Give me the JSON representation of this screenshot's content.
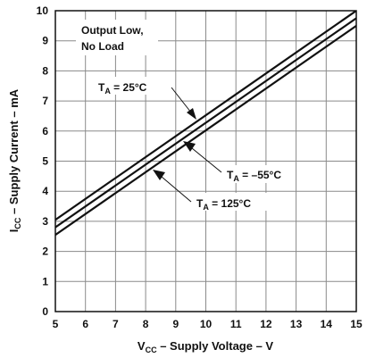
{
  "chart_data": {
    "type": "line",
    "xlabel_main": "V",
    "xlabel_sub": "CC",
    "xlabel_rest": " – Supply Voltage – V",
    "ylabel_main": "I",
    "ylabel_sub": "CC",
    "ylabel_rest": " – Supply Current – mA",
    "xlim": [
      5,
      15
    ],
    "ylim": [
      0,
      10
    ],
    "xticks": [
      5,
      6,
      7,
      8,
      9,
      10,
      11,
      12,
      13,
      14,
      15
    ],
    "yticks": [
      0,
      1,
      2,
      3,
      4,
      5,
      6,
      7,
      8,
      9,
      10
    ],
    "grid": true,
    "condition_line1": "Output Low,",
    "condition_line2": "No Load",
    "series": [
      {
        "label_main": "T",
        "label_sub": "A",
        "label_rest": " = 25°C",
        "x": [
          5,
          15
        ],
        "y": [
          3.05,
          10.0
        ]
      },
      {
        "label_main": "T",
        "label_sub": "A",
        "label_rest": " = –55°C",
        "x": [
          5,
          15
        ],
        "y": [
          2.8,
          9.75
        ]
      },
      {
        "label_main": "T",
        "label_sub": "A",
        "label_rest": " = 125°C",
        "x": [
          5,
          15
        ],
        "y": [
          2.55,
          9.5
        ]
      }
    ]
  }
}
